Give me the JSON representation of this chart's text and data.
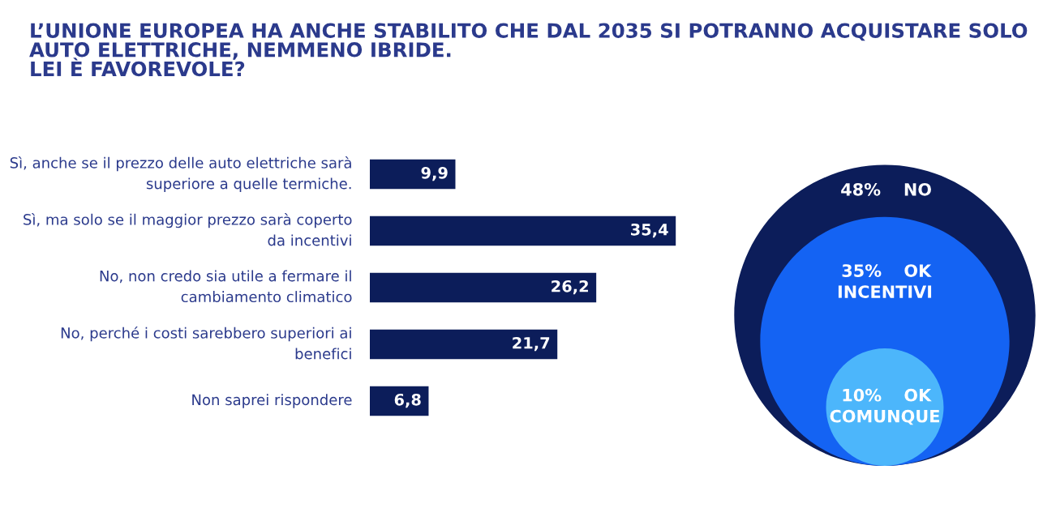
{
  "chart_data": [
    {
      "type": "bar",
      "orientation": "horizontal",
      "title": "L’UNIONE EUROPEA HA ANCHE STABILITO CHE DAL 2035 SI POTRANNO ACQUISTARE SOLO AUTO ELETTRICHE, NEMMENO IBRIDE.\nLEI È FAVOREVOLE?",
      "categories": [
        "Sì, anche se il prezzo delle auto elettriche sarà superiore a quelle termiche.",
        "Sì, ma solo se il maggior prezzo sarà coperto da incentivi",
        "No, non credo sia utile a fermare il cambiamento climatico",
        "No, perché i costi sarebbero superiori ai benefici",
        "Non saprei rispondere"
      ],
      "values": [
        9.9,
        35.4,
        26.2,
        21.7,
        6.8
      ],
      "value_labels": [
        "9,9",
        "35,4",
        "26,2",
        "21,7",
        "6,8"
      ],
      "color": "#0c1d5a"
    },
    {
      "type": "other",
      "categories": [
        "NO",
        "OK INCENTIVI",
        "OK COMUNQUE"
      ],
      "values": [
        48,
        35,
        10
      ],
      "value_labels": [
        "48%",
        "35%",
        "10%"
      ],
      "colors": [
        "#0c1d5a",
        "#1463f3",
        "#4cb6fb"
      ]
    }
  ]
}
